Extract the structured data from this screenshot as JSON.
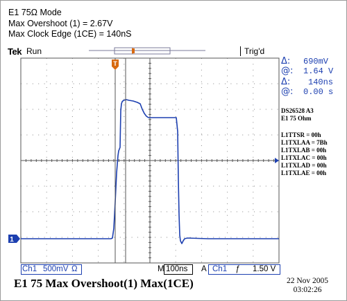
{
  "header": {
    "line1": "E1 75Ω Mode",
    "line2": "Max Overshoot (1) = 2.67V",
    "line3": "Max Clock Edge (1CE) = 140nS"
  },
  "scope": {
    "brand": "Tek",
    "run_state": "Run",
    "trigger_status": "Trig'd"
  },
  "measurements": {
    "delta_symbol": "Δ:",
    "at_symbol": "@:",
    "m1_delta": "690mV",
    "m1_at": "1.64 V",
    "m2_delta": "140ns",
    "m2_at": "0.00 s"
  },
  "annotations": [
    "DS26528 A3",
    "E1 75 Ohm",
    "",
    "L1TTSR = 00h",
    "L1TXLAA = 7Bh",
    "L1TXLAB = 00h",
    "L1TXLAC = 00h",
    "L1TXLAD = 00h",
    "L1TXLAE = 00h"
  ],
  "channel_marker": "1",
  "trigger_marker": "T",
  "statusbar": {
    "channel": "Ch1",
    "volts_per_div": "500mV",
    "ohm_symbol": "Ω",
    "time_mode": "M",
    "time_per_div": "100ns",
    "trig_mode": "A",
    "trig_channel": "Ch1",
    "trig_slope": "ƒ",
    "trig_level": "1.50 V"
  },
  "caption": "E1 75 Max Overshoot(1)  Max(1CE)",
  "date": "22 Nov 2005",
  "time": "03:02:26",
  "colors": {
    "trace": "#1c3fb0",
    "grid": "#555555",
    "trigger_marker": "#d86a10"
  }
}
